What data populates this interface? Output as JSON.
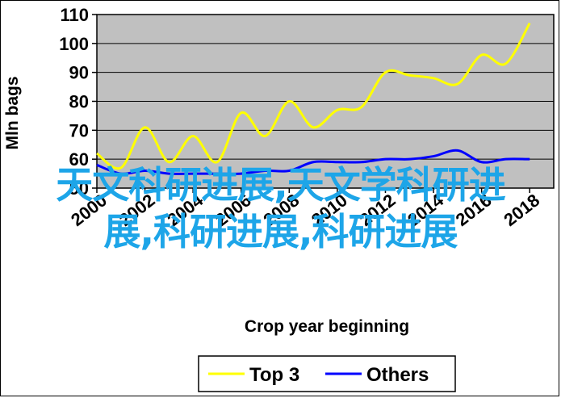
{
  "chart_data": {
    "type": "line",
    "title": "",
    "xlabel": "Crop year beginning",
    "ylabel": "Mln bags",
    "x": [
      2000,
      2001,
      2002,
      2003,
      2004,
      2005,
      2006,
      2007,
      2008,
      2009,
      2010,
      2011,
      2012,
      2013,
      2014,
      2015,
      2016,
      2017,
      2018,
      2019
    ],
    "xticks": [
      "2000",
      "2002",
      "2004",
      "2006",
      "2008",
      "2010",
      "2012",
      "2014",
      "2016",
      "2018"
    ],
    "yticks": [
      "50",
      "60",
      "70",
      "80",
      "90",
      "100",
      "110"
    ],
    "ylim": [
      50,
      110
    ],
    "xlim": [
      2000,
      2019
    ],
    "grid": true,
    "legend": "bottom",
    "series": [
      {
        "name": "Top 3",
        "color": "#ffff00",
        "values": [
          62,
          57,
          71,
          59,
          68,
          59,
          76,
          68,
          80,
          71,
          77,
          78,
          90,
          89,
          88,
          86,
          96,
          93,
          107,
          null
        ]
      },
      {
        "name": "Others",
        "color": "#0000ff",
        "values": [
          58,
          55,
          56,
          55,
          55,
          55,
          55,
          56,
          56,
          59,
          59,
          59,
          60,
          60,
          61,
          63,
          59,
          60,
          60,
          null
        ]
      }
    ]
  },
  "overlay": {
    "line1": "天文科研进展,天文学科研进",
    "line2": "展,科研进展,科研进展"
  },
  "colors": {
    "plot_bg": "#c0c0c0",
    "overlay_text": "#1da5e8"
  }
}
